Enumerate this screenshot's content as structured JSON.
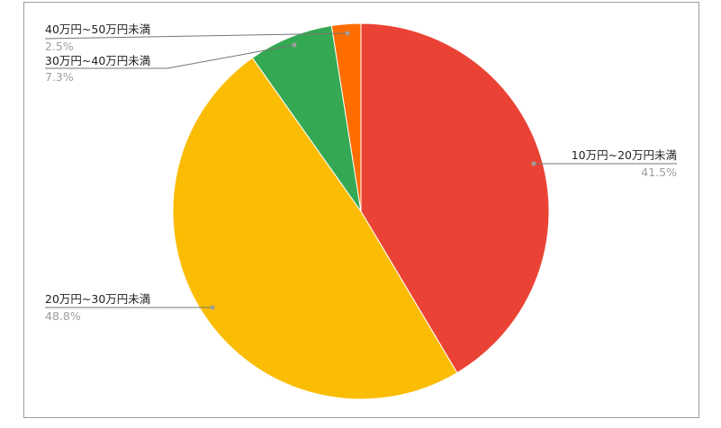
{
  "chart_data": {
    "type": "pie",
    "start_angle": "top, clockwise",
    "legend": "labels with leader lines",
    "slices": [
      {
        "label": "10万円~20万円未満",
        "value": 41.5,
        "pct_label": "41.5%",
        "color": "#EA4335"
      },
      {
        "label": "20万円~30万円未満",
        "value": 48.8,
        "pct_label": "48.8%",
        "color": "#FBBC04"
      },
      {
        "label": "30万円~40万円未満",
        "value": 7.3,
        "pct_label": "7.3%",
        "color": "#34A853"
      },
      {
        "label": "40万円~50万円未満",
        "value": 2.5,
        "pct_label": "2.5%",
        "color": "#FF6D01"
      }
    ]
  }
}
